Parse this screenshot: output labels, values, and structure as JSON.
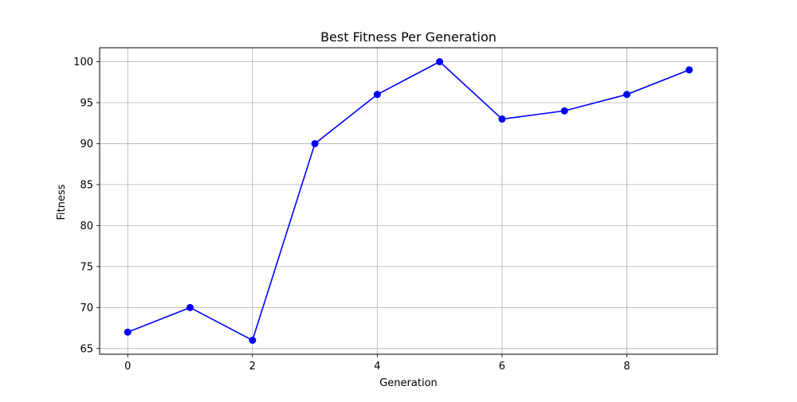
{
  "chart_data": {
    "type": "line",
    "title": "Best Fitness Per Generation",
    "xlabel": "Generation",
    "ylabel": "Fitness",
    "x": [
      0,
      1,
      2,
      3,
      4,
      5,
      6,
      7,
      8,
      9
    ],
    "series": [
      {
        "values": [
          67,
          70,
          66,
          90,
          96,
          100,
          93,
          94,
          96,
          99
        ],
        "color": "#0000ff",
        "marker": "circle"
      }
    ],
    "xlim": [
      -0.45,
      9.45
    ],
    "ylim": [
      64.3,
      101.7
    ],
    "xticks": [
      0,
      2,
      4,
      6,
      8
    ],
    "yticks": [
      65,
      70,
      75,
      80,
      85,
      90,
      95,
      100
    ],
    "grid": true
  }
}
